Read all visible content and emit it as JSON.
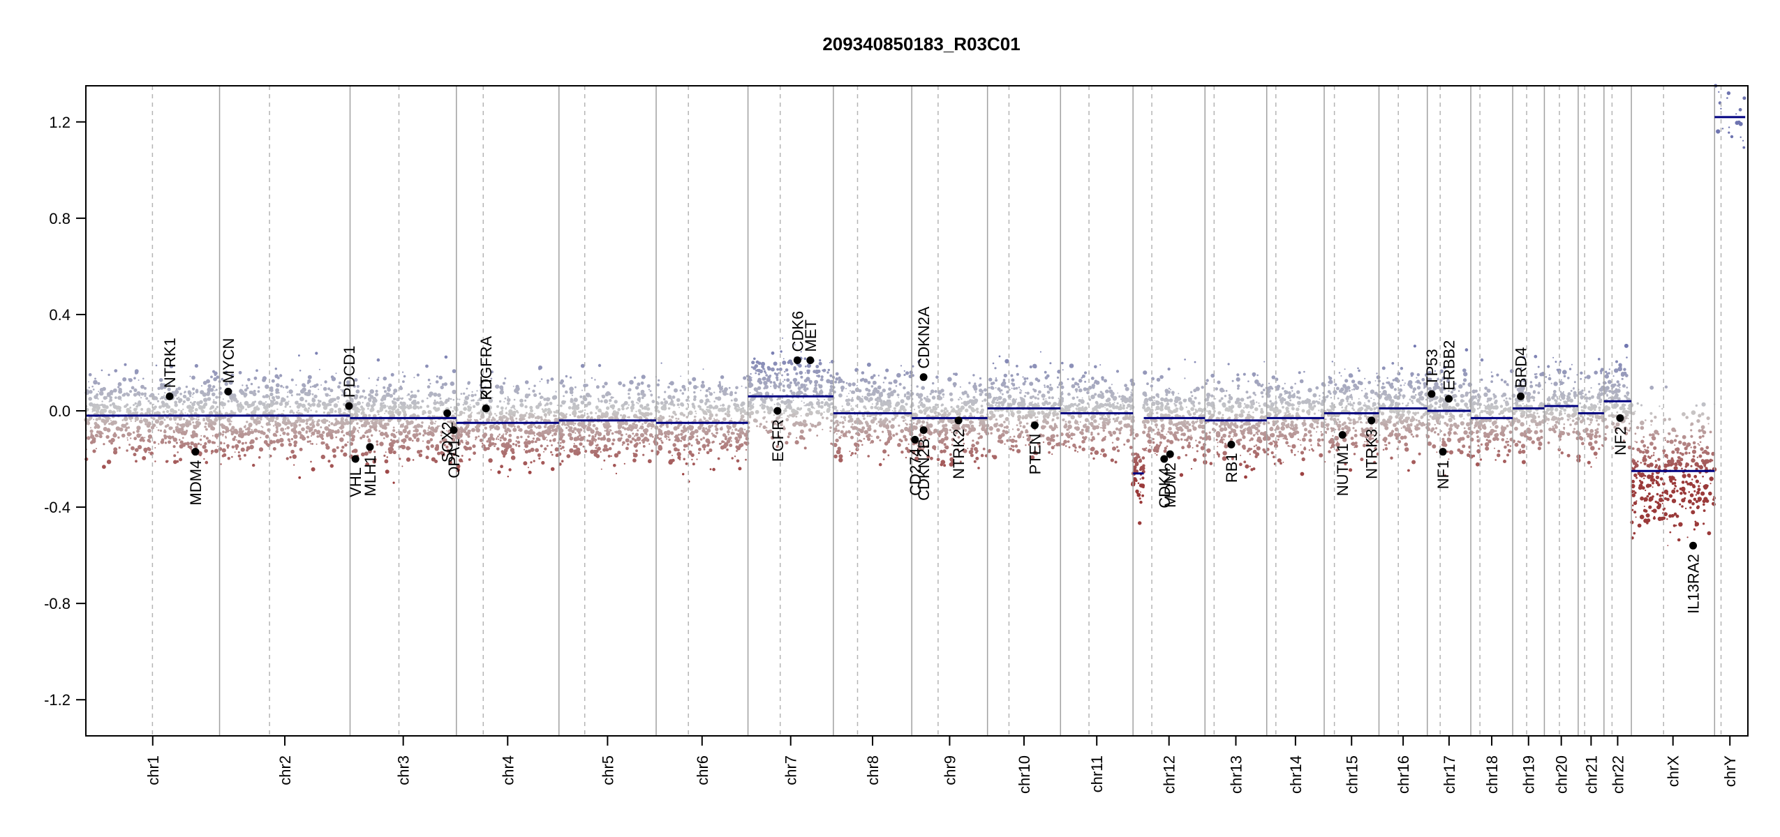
{
  "chart_data": {
    "type": "scatter",
    "title": "209340850183_R03C01",
    "xlabel": "",
    "ylabel": "",
    "ylim": [
      -1.35,
      1.35
    ],
    "y_ticks": [
      1.2,
      0.8,
      0.4,
      0.0,
      -0.4,
      -0.8,
      -1.2
    ],
    "y_tick_labels": [
      "1.2",
      "0.8",
      "0.4",
      "0.0",
      "-0.4",
      "-0.8",
      "-1.2"
    ],
    "genome_length_mb": 3095,
    "chromosomes": [
      {
        "name": "chr1",
        "length": 249,
        "centromere": 124
      },
      {
        "name": "chr2",
        "length": 243,
        "centromere": 93
      },
      {
        "name": "chr3",
        "length": 198,
        "centromere": 91
      },
      {
        "name": "chr4",
        "length": 191,
        "centromere": 50
      },
      {
        "name": "chr5",
        "length": 181,
        "centromere": 48
      },
      {
        "name": "chr6",
        "length": 171,
        "centromere": 60
      },
      {
        "name": "chr7",
        "length": 159,
        "centromere": 60
      },
      {
        "name": "chr8",
        "length": 146,
        "centromere": 45
      },
      {
        "name": "chr9",
        "length": 141,
        "centromere": 49
      },
      {
        "name": "chr10",
        "length": 136,
        "centromere": 40
      },
      {
        "name": "chr11",
        "length": 135,
        "centromere": 53
      },
      {
        "name": "chr12",
        "length": 134,
        "centromere": 35
      },
      {
        "name": "chr13",
        "length": 115,
        "centromere": 17
      },
      {
        "name": "chr14",
        "length": 107,
        "centromere": 17
      },
      {
        "name": "chr15",
        "length": 102,
        "centromere": 19
      },
      {
        "name": "chr16",
        "length": 90,
        "centromere": 36
      },
      {
        "name": "chr17",
        "length": 81,
        "centromere": 24
      },
      {
        "name": "chr18",
        "length": 78,
        "centromere": 17
      },
      {
        "name": "chr19",
        "length": 59,
        "centromere": 26
      },
      {
        "name": "chr20",
        "length": 63,
        "centromere": 28
      },
      {
        "name": "chr21",
        "length": 48,
        "centromere": 12
      },
      {
        "name": "chr22",
        "length": 51,
        "centromere": 15
      },
      {
        "name": "chrX",
        "length": 155,
        "centromere": 60
      },
      {
        "name": "chrY",
        "length": 57,
        "centromere": 12
      }
    ],
    "segments": [
      {
        "chr": "chr1",
        "start": 0,
        "end": 249,
        "value": -0.02
      },
      {
        "chr": "chr2",
        "start": 0,
        "end": 243,
        "value": -0.02
      },
      {
        "chr": "chr3",
        "start": 0,
        "end": 198,
        "value": -0.03
      },
      {
        "chr": "chr4",
        "start": 0,
        "end": 191,
        "value": -0.05
      },
      {
        "chr": "chr5",
        "start": 0,
        "end": 181,
        "value": -0.04
      },
      {
        "chr": "chr6",
        "start": 0,
        "end": 171,
        "value": -0.05
      },
      {
        "chr": "chr7",
        "start": 0,
        "end": 159,
        "value": 0.06
      },
      {
        "chr": "chr8",
        "start": 0,
        "end": 146,
        "value": -0.01
      },
      {
        "chr": "chr9",
        "start": 0,
        "end": 141,
        "value": -0.03
      },
      {
        "chr": "chr10",
        "start": 0,
        "end": 136,
        "value": 0.01
      },
      {
        "chr": "chr11",
        "start": 0,
        "end": 135,
        "value": -0.01
      },
      {
        "chr": "chr12",
        "start": 0,
        "end": 20,
        "value": -0.26
      },
      {
        "chr": "chr12",
        "start": 20,
        "end": 134,
        "value": -0.03
      },
      {
        "chr": "chr13",
        "start": 0,
        "end": 115,
        "value": -0.04
      },
      {
        "chr": "chr14",
        "start": 0,
        "end": 107,
        "value": -0.03
      },
      {
        "chr": "chr15",
        "start": 0,
        "end": 102,
        "value": -0.01
      },
      {
        "chr": "chr16",
        "start": 0,
        "end": 90,
        "value": 0.01
      },
      {
        "chr": "chr17",
        "start": 0,
        "end": 81,
        "value": 0.0
      },
      {
        "chr": "chr18",
        "start": 0,
        "end": 78,
        "value": -0.03
      },
      {
        "chr": "chr19",
        "start": 0,
        "end": 59,
        "value": 0.01
      },
      {
        "chr": "chr20",
        "start": 0,
        "end": 63,
        "value": 0.02
      },
      {
        "chr": "chr21",
        "start": 0,
        "end": 48,
        "value": -0.01
      },
      {
        "chr": "chr22",
        "start": 0,
        "end": 51,
        "value": 0.04
      },
      {
        "chr": "chrX",
        "start": 0,
        "end": 155,
        "value": -0.25
      },
      {
        "chr": "chrY",
        "start": 0,
        "end": 57,
        "value": 1.22
      }
    ],
    "genes": [
      {
        "name": "NTRK1",
        "chr": "chr1",
        "pos": 156,
        "value": 0.06,
        "label_side": "above"
      },
      {
        "name": "MDM4",
        "chr": "chr1",
        "pos": 204,
        "value": -0.17,
        "label_side": "below"
      },
      {
        "name": "MYCN",
        "chr": "chr2",
        "pos": 16,
        "value": 0.08,
        "label_side": "above"
      },
      {
        "name": "PDCD1",
        "chr": "chr2",
        "pos": 241,
        "value": 0.02,
        "label_side": "above"
      },
      {
        "name": "VHL",
        "chr": "chr3",
        "pos": 10,
        "value": -0.2,
        "label_side": "below"
      },
      {
        "name": "MLH1",
        "chr": "chr3",
        "pos": 37,
        "value": -0.15,
        "label_side": "below"
      },
      {
        "name": "SOX2",
        "chr": "chr3",
        "pos": 181,
        "value": -0.01,
        "label_side": "below"
      },
      {
        "name": "OPA1",
        "chr": "chr3",
        "pos": 193,
        "value": -0.08,
        "label_side": "below"
      },
      {
        "name": "KIT",
        "chr": "chr4",
        "pos": 55,
        "value": 0.01,
        "label_side": "above"
      },
      {
        "name": "PDGFRA",
        "chr": "chr4",
        "pos": 55,
        "value": 0.01,
        "label_side": "above"
      },
      {
        "name": "EGFR",
        "chr": "chr7",
        "pos": 55,
        "value": -0.0,
        "label_side": "below"
      },
      {
        "name": "CDK6",
        "chr": "chr7",
        "pos": 92,
        "value": 0.21,
        "label_side": "above"
      },
      {
        "name": "MET",
        "chr": "chr7",
        "pos": 116,
        "value": 0.21,
        "label_side": "above"
      },
      {
        "name": "CDKN2A",
        "chr": "chr9",
        "pos": 22,
        "value": 0.14,
        "label_side": "above"
      },
      {
        "name": "CDKN2B",
        "chr": "chr9",
        "pos": 22,
        "value": -0.08,
        "label_side": "below"
      },
      {
        "name": "CD274",
        "chr": "chr9",
        "pos": 6,
        "value": -0.12,
        "label_side": "below"
      },
      {
        "name": "NTRK2",
        "chr": "chr9",
        "pos": 87,
        "value": -0.04,
        "label_side": "below"
      },
      {
        "name": "PTEN",
        "chr": "chr10",
        "pos": 88,
        "value": -0.06,
        "label_side": "below"
      },
      {
        "name": "CDK4",
        "chr": "chr12",
        "pos": 58,
        "value": -0.2,
        "label_side": "below"
      },
      {
        "name": "MDM2",
        "chr": "chr12",
        "pos": 69,
        "value": -0.18,
        "label_side": "below"
      },
      {
        "name": "RB1",
        "chr": "chr13",
        "pos": 49,
        "value": -0.14,
        "label_side": "below"
      },
      {
        "name": "NUTM1",
        "chr": "chr15",
        "pos": 34,
        "value": -0.1,
        "label_side": "below"
      },
      {
        "name": "NTRK3",
        "chr": "chr15",
        "pos": 88,
        "value": -0.04,
        "label_side": "below"
      },
      {
        "name": "TP53",
        "chr": "chr17",
        "pos": 8,
        "value": 0.07,
        "label_side": "above"
      },
      {
        "name": "NF1",
        "chr": "chr17",
        "pos": 29,
        "value": -0.17,
        "label_side": "below"
      },
      {
        "name": "ERBB2",
        "chr": "chr17",
        "pos": 40,
        "value": 0.05,
        "label_side": "above"
      },
      {
        "name": "BRD4",
        "chr": "chr19",
        "pos": 15,
        "value": 0.06,
        "label_side": "above"
      },
      {
        "name": "NF2",
        "chr": "chr22",
        "pos": 30,
        "value": -0.03,
        "label_side": "below"
      },
      {
        "name": "IL13RA2",
        "chr": "chrX",
        "pos": 115,
        "value": -0.56,
        "label_side": "below"
      }
    ],
    "grid": true,
    "legend": "none",
    "colors": {
      "gain": "#6e74b0",
      "loss": "#9a3a3a",
      "neutral": "#c8c8c8",
      "segment": "#000080",
      "chrom_boundary": "#a0a0a0",
      "centromere": "#b4b4b4",
      "gene_dot": "#000000"
    }
  }
}
